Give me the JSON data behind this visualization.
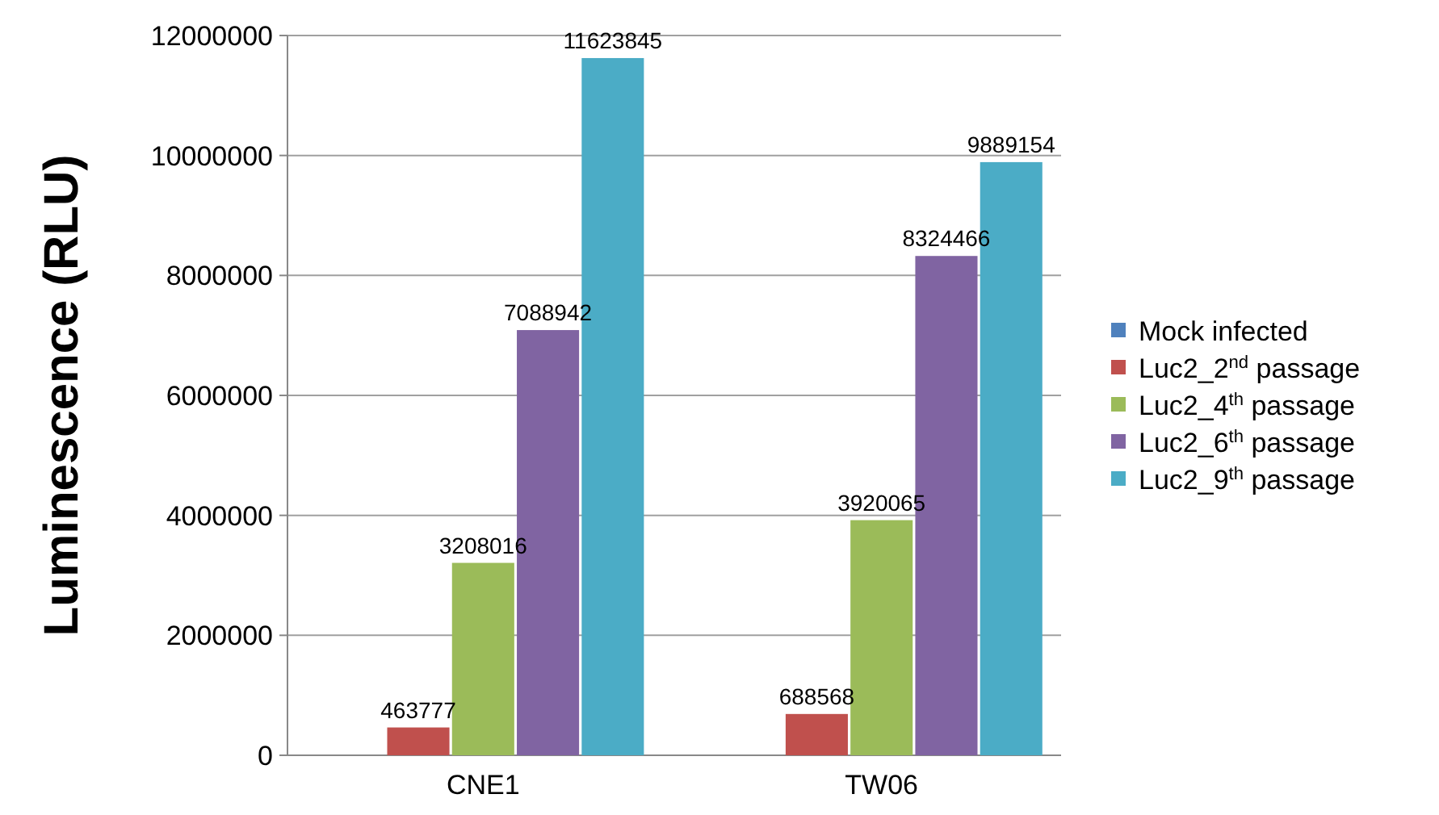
{
  "chart_data": {
    "type": "bar",
    "ylabel": "Luminescence (RLU)",
    "categories": [
      "CNE1",
      "TW06"
    ],
    "series": [
      {
        "name": "Mock infected",
        "color": "#4f81bd",
        "values": [
          0,
          0
        ],
        "value_labels": [
          null,
          null
        ]
      },
      {
        "name": "Luc2_2$^{nd}$ passage",
        "color": "#c0504d",
        "values": [
          463777,
          688568
        ],
        "value_labels": [
          "463777",
          "688568"
        ]
      },
      {
        "name": "Luc2_4$^{th}$ passage",
        "color": "#9bbb59",
        "values": [
          3208016,
          3920065
        ],
        "value_labels": [
          "3208016",
          "3920065"
        ]
      },
      {
        "name": "Luc2_6$^{th}$ passage",
        "color": "#8064a2",
        "values": [
          7088942,
          8324466
        ],
        "value_labels": [
          "7088942",
          "8324466"
        ]
      },
      {
        "name": "Luc2_9$^{th}$ passage",
        "color": "#4bacc6",
        "values": [
          11623845,
          9889154
        ],
        "value_labels": [
          "11623845",
          "9889154"
        ]
      }
    ],
    "ylim": [
      0,
      12000000
    ],
    "yticks": [
      0,
      2000000,
      4000000,
      6000000,
      8000000,
      10000000,
      12000000
    ],
    "grid": "y",
    "legend": "right"
  }
}
